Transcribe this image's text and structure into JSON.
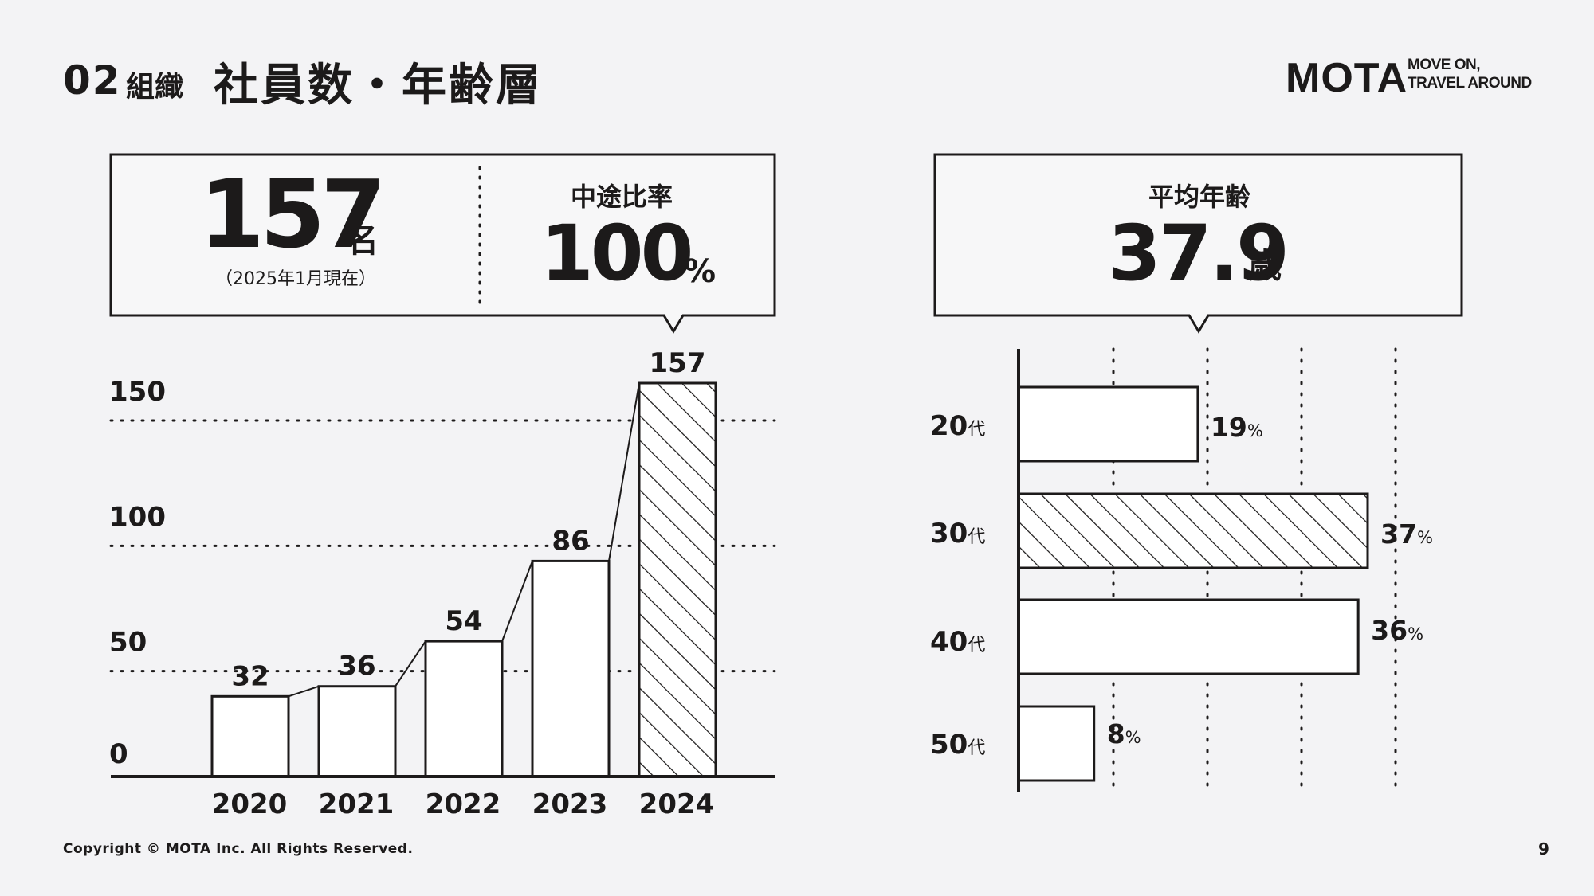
{
  "header": {
    "section_number": "02",
    "section_label": "組織",
    "title": "社員数・年齢層",
    "logo_text": "MOTA",
    "logo_tagline_1": "MOVE ON,",
    "logo_tagline_2": "TRAVEL AROUND"
  },
  "headcount_box": {
    "value": "157",
    "unit": "名",
    "note": "（2025年1月現在）",
    "mid_career_label": "中途比率",
    "mid_career_value": "100",
    "mid_career_unit": "%"
  },
  "age_box": {
    "label": "平均年齢",
    "value": "37.9",
    "unit": "歳"
  },
  "chart_data": [
    {
      "type": "bar",
      "categories": [
        "2020",
        "2021",
        "2022",
        "2023",
        "2024"
      ],
      "values": [
        32,
        36,
        54,
        86,
        157
      ],
      "data_labels": [
        "32",
        "36",
        "54",
        "86",
        "157"
      ],
      "yticks": [
        "0",
        "50",
        "100",
        "150"
      ],
      "ylim": [
        0,
        157
      ],
      "grid": true,
      "highlight": "2024"
    },
    {
      "type": "bar",
      "orientation": "horizontal",
      "categories": [
        "20代",
        "30代",
        "40代",
        "50代"
      ],
      "category_numbers": [
        "20",
        "30",
        "40",
        "50"
      ],
      "category_suffix": "代",
      "values": [
        19,
        37,
        36,
        8
      ],
      "value_unit": "%",
      "grid": true,
      "highlight": "30代"
    }
  ],
  "footer": {
    "copyright": "Copyright © MOTA Inc. All Rights Reserved.",
    "page_number": "9"
  },
  "colors": {
    "ink": "#1c1a1a",
    "background": "#f3f3f5",
    "bar_fill": "#ffffff"
  }
}
